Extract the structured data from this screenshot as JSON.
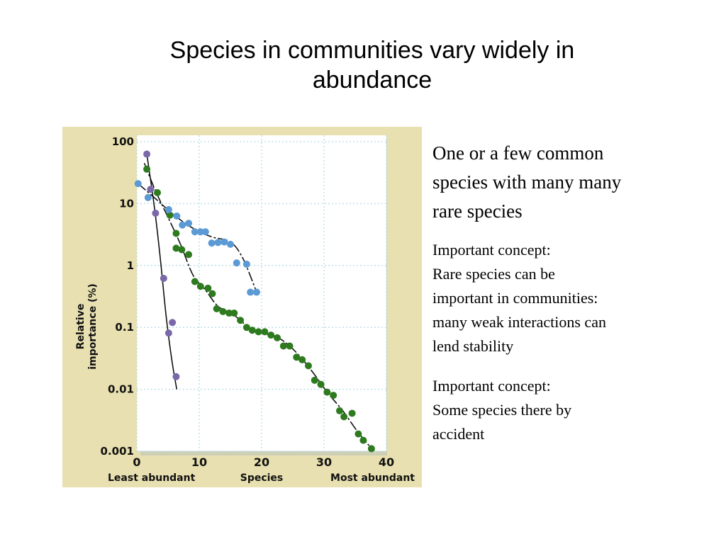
{
  "slide": {
    "title_lines": [
      "Species in communities vary widely in",
      "abundance"
    ]
  },
  "notes": {
    "main_lines": [
      "One or a few common",
      "species with many many",
      "rare species"
    ],
    "concept1_lines": [
      "Important concept:",
      "Rare species can be",
      "important in communities:",
      "many weak interactions can",
      "lend stability"
    ],
    "concept2_lines": [
      "Important concept:",
      "Some species there by",
      "accident"
    ]
  },
  "chart_data": {
    "type": "scatter",
    "y_scale": "log",
    "ylim": [
      0.001,
      100
    ],
    "xlim": [
      0,
      40
    ],
    "ylabel_lines": [
      "Relative",
      "importance (%)"
    ],
    "ytick_labels": [
      "100",
      "10",
      "1",
      "0.1",
      "0.01",
      "0.001"
    ],
    "ytick_values": [
      100,
      10,
      1,
      0.1,
      0.01,
      0.001
    ],
    "xtick_labels": [
      "0",
      "10",
      "20",
      "30",
      "40"
    ],
    "xtick_values": [
      0,
      10,
      20,
      30,
      40
    ],
    "x_caption_left": "Least abundant",
    "x_caption_center": "Species",
    "x_caption_right": "Most abundant",
    "grid": true,
    "background_color": "#e8e0b0",
    "plot_color": "#ffffff",
    "grid_color": "#bfe0ea",
    "series": [
      {
        "color": "#7b68a8",
        "points": [
          [
            1.6,
            63
          ],
          [
            2.2,
            17
          ],
          [
            3.0,
            7
          ],
          [
            4.3,
            0.62
          ],
          [
            5.1,
            0.081
          ],
          [
            5.7,
            0.12
          ],
          [
            6.3,
            0.016
          ]
        ],
        "curve": [
          [
            1.6,
            63
          ],
          [
            2.8,
            9
          ],
          [
            3.8,
            1.2
          ],
          [
            4.7,
            0.15
          ],
          [
            5.6,
            0.03
          ],
          [
            6.4,
            0.01
          ]
        ]
      },
      {
        "color": "#2e7a1e",
        "points": [
          [
            1.6,
            36
          ],
          [
            3.3,
            15
          ],
          [
            5.3,
            6.5
          ],
          [
            6.3,
            3.3
          ],
          [
            6.3,
            1.9
          ],
          [
            7.2,
            1.8
          ],
          [
            8.3,
            1.5
          ],
          [
            9.3,
            0.55
          ],
          [
            10.2,
            0.46
          ],
          [
            11.4,
            0.43
          ],
          [
            12.1,
            0.35
          ],
          [
            12.8,
            0.2
          ],
          [
            13.8,
            0.18
          ],
          [
            14.8,
            0.17
          ],
          [
            15.6,
            0.17
          ],
          [
            16.6,
            0.13
          ],
          [
            17.6,
            0.1
          ],
          [
            18.5,
            0.09
          ],
          [
            19.5,
            0.085
          ],
          [
            20.5,
            0.085
          ],
          [
            21.5,
            0.075
          ],
          [
            22.5,
            0.068
          ],
          [
            23.5,
            0.05
          ],
          [
            24.5,
            0.05
          ],
          [
            25.6,
            0.033
          ],
          [
            26.5,
            0.03
          ],
          [
            27.5,
            0.024
          ],
          [
            28.5,
            0.014
          ],
          [
            29.5,
            0.012
          ],
          [
            30.5,
            0.009
          ],
          [
            31.5,
            0.008
          ],
          [
            32.5,
            0.0045
          ],
          [
            33.2,
            0.0036
          ],
          [
            34.5,
            0.0041
          ],
          [
            35.5,
            0.0019
          ],
          [
            36.3,
            0.0015
          ],
          [
            37.6,
            0.0011
          ]
        ],
        "curve": [
          [
            1.2,
            45
          ],
          [
            3.0,
            16
          ],
          [
            5.0,
            6
          ],
          [
            7.0,
            2.2
          ],
          [
            9.0,
            0.7
          ],
          [
            11.0,
            0.4
          ],
          [
            13.0,
            0.22
          ],
          [
            15.5,
            0.16
          ],
          [
            18.0,
            0.1
          ],
          [
            20.5,
            0.08
          ],
          [
            23.0,
            0.065
          ],
          [
            25.5,
            0.04
          ],
          [
            28.0,
            0.02
          ],
          [
            30.5,
            0.009
          ],
          [
            33.0,
            0.0045
          ],
          [
            35.5,
            0.002
          ],
          [
            38.0,
            0.001
          ]
        ]
      },
      {
        "color": "#5b9ad4",
        "points": [
          [
            0.2,
            21
          ],
          [
            1.8,
            12.5
          ],
          [
            5.1,
            8
          ],
          [
            6.4,
            6.3
          ],
          [
            7.3,
            4.5
          ],
          [
            8.3,
            4.8
          ],
          [
            9.3,
            3.5
          ],
          [
            10.2,
            3.5
          ],
          [
            11.0,
            3.5
          ],
          [
            12.0,
            2.3
          ],
          [
            13.0,
            2.35
          ],
          [
            14.0,
            2.4
          ],
          [
            15.0,
            2.2
          ],
          [
            16.0,
            1.1
          ],
          [
            17.6,
            1.05
          ],
          [
            18.2,
            0.37
          ],
          [
            19.2,
            0.37
          ]
        ],
        "curve": [
          [
            0.2,
            21
          ],
          [
            3.0,
            12
          ],
          [
            6.0,
            6.5
          ],
          [
            9.0,
            4.0
          ],
          [
            12.0,
            2.9
          ],
          [
            15.0,
            2.4
          ],
          [
            17.0,
            1.3
          ],
          [
            19.2,
            0.37
          ]
        ]
      }
    ]
  }
}
